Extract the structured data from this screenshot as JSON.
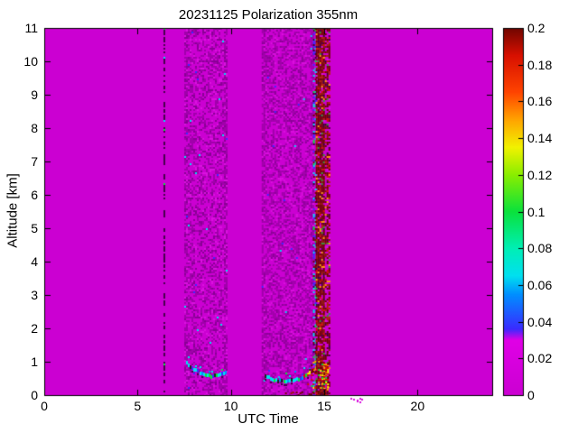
{
  "title": "20231125 Polarization 355nm",
  "axes": {
    "xlabel": "UTC Time",
    "ylabel": "Altitude [km]",
    "x_range": [
      0,
      24
    ],
    "x_tick_values": [
      0,
      5,
      10,
      15,
      20
    ],
    "x_tick_labels": [
      "0",
      "5",
      "10",
      "15",
      "20"
    ],
    "y_range": [
      0,
      11
    ],
    "y_tick_values": [
      0,
      1,
      2,
      3,
      4,
      5,
      6,
      7,
      8,
      9,
      10,
      11
    ],
    "y_tick_labels": [
      "0",
      "1",
      "2",
      "3",
      "4",
      "5",
      "6",
      "7",
      "8",
      "9",
      "10",
      "11"
    ]
  },
  "colorbar": {
    "range": [
      0,
      0.2
    ],
    "tick_values": [
      0,
      0.02,
      0.04,
      0.06,
      0.08,
      0.1,
      0.12,
      0.14,
      0.16,
      0.18,
      0.2
    ],
    "tick_labels": [
      "0",
      "0.02",
      "0.04",
      "0.06",
      "0.08",
      "0.1",
      "0.12",
      "0.14",
      "0.16",
      "0.18",
      "0.2"
    ],
    "stops": [
      [
        0.0,
        "#cb00d2"
      ],
      [
        0.03,
        "#e000e6"
      ],
      [
        0.036,
        "#3a2bff"
      ],
      [
        0.055,
        "#0090ff"
      ],
      [
        0.065,
        "#00e0f0"
      ],
      [
        0.08,
        "#00efb4"
      ],
      [
        0.1,
        "#0ae23c"
      ],
      [
        0.12,
        "#8aee00"
      ],
      [
        0.135,
        "#f2f200"
      ],
      [
        0.15,
        "#ffa300"
      ],
      [
        0.165,
        "#ff4400"
      ],
      [
        0.185,
        "#d81000"
      ],
      [
        0.2,
        "#700600"
      ]
    ]
  },
  "chart_data": {
    "type": "heatmap",
    "title": "20231125 Polarization 355nm",
    "xlabel": "UTC Time",
    "ylabel": "Altitude [km]",
    "xlim": [
      0,
      24
    ],
    "ylim": [
      0,
      11
    ],
    "clim": [
      0,
      0.2
    ],
    "background_value": 0,
    "legend_position": "right-colorbar",
    "features": {
      "calibration_line": {
        "x": 6.45,
        "y": [
          0,
          11
        ],
        "value_range": [
          0,
          0.02
        ]
      },
      "noise_bands": [
        {
          "x": [
            7.5,
            9.75
          ],
          "y": [
            0,
            11
          ],
          "value_range": [
            0,
            0.01
          ],
          "density": 0.45
        },
        {
          "x": [
            11.65,
            14.42
          ],
          "y": [
            0,
            11
          ],
          "value_range": [
            0,
            0.01
          ],
          "density": 0.5
        }
      ],
      "stripe_edge_speckle": {
        "x": [
          14.4,
          14.58
        ],
        "y": [
          0,
          11
        ],
        "value_range": [
          0.03,
          0.08
        ]
      },
      "high_depol_stripe": {
        "x": [
          14.55,
          15.3
        ],
        "y": [
          0,
          11
        ],
        "value_range": [
          0.16,
          0.2
        ],
        "seam_x": [
          15.0,
          15.08
        ]
      },
      "boundary_layer_1": {
        "value_range": [
          0.03,
          0.08
        ],
        "points": [
          [
            7.6,
            0.95
          ],
          [
            7.8,
            0.86
          ],
          [
            8.0,
            0.78
          ],
          [
            8.2,
            0.7
          ],
          [
            8.4,
            0.63
          ],
          [
            8.6,
            0.58
          ],
          [
            8.8,
            0.57
          ],
          [
            9.0,
            0.57
          ],
          [
            9.2,
            0.59
          ],
          [
            9.4,
            0.62
          ],
          [
            9.6,
            0.67
          ],
          [
            9.8,
            0.72
          ]
        ]
      },
      "boundary_layer_2": {
        "value_range": [
          0.03,
          0.2
        ],
        "points": [
          [
            11.8,
            0.6
          ],
          [
            12.0,
            0.52
          ],
          [
            12.2,
            0.46
          ],
          [
            12.4,
            0.43
          ],
          [
            12.6,
            0.42
          ],
          [
            12.8,
            0.43
          ],
          [
            13.0,
            0.44
          ],
          [
            13.2,
            0.45
          ],
          [
            13.4,
            0.46
          ],
          [
            13.6,
            0.48
          ],
          [
            13.8,
            0.52
          ],
          [
            14.0,
            0.58
          ],
          [
            14.2,
            0.67
          ],
          [
            14.4,
            0.78
          ],
          [
            14.6,
            0.92
          ]
        ]
      },
      "hot_cluster": {
        "x": [
          13.9,
          15.25
        ],
        "y": [
          0.25,
          1.05
        ],
        "value_range": [
          0.12,
          0.2
        ]
      },
      "surface_layer": {
        "x": [
          12.9,
          15.3
        ],
        "y": [
          0,
          0.15
        ],
        "value_range": [
          0.18,
          0.2
        ]
      },
      "below_axis_specks": {
        "x": [
          16.4,
          17.2
        ]
      }
    }
  }
}
